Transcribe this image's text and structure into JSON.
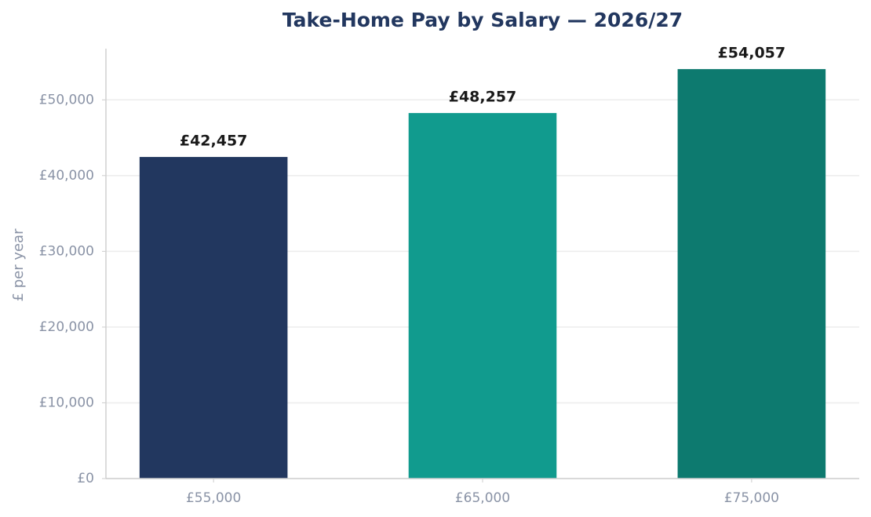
{
  "chart_data": {
    "type": "bar",
    "title": "Take-Home Pay by Salary — 2026/27",
    "y_label": "£ per year",
    "categories": [
      "£55,000",
      "£65,000",
      "£75,000"
    ],
    "values": [
      42457,
      48257,
      54057
    ],
    "value_labels": [
      "£42,457",
      "£48,257",
      "£54,057"
    ],
    "colors": [
      "#22375f",
      "#119b8e",
      "#0d7a6f"
    ],
    "ylim": [
      0,
      56760
    ],
    "yticks": [
      {
        "value": 0,
        "label": "£0"
      },
      {
        "value": 10000,
        "label": "£10,000"
      },
      {
        "value": 20000,
        "label": "£20,000"
      },
      {
        "value": 30000,
        "label": "£30,000"
      },
      {
        "value": 40000,
        "label": "£40,000"
      },
      {
        "value": 50000,
        "label": "£50,000"
      }
    ],
    "grid": true
  }
}
